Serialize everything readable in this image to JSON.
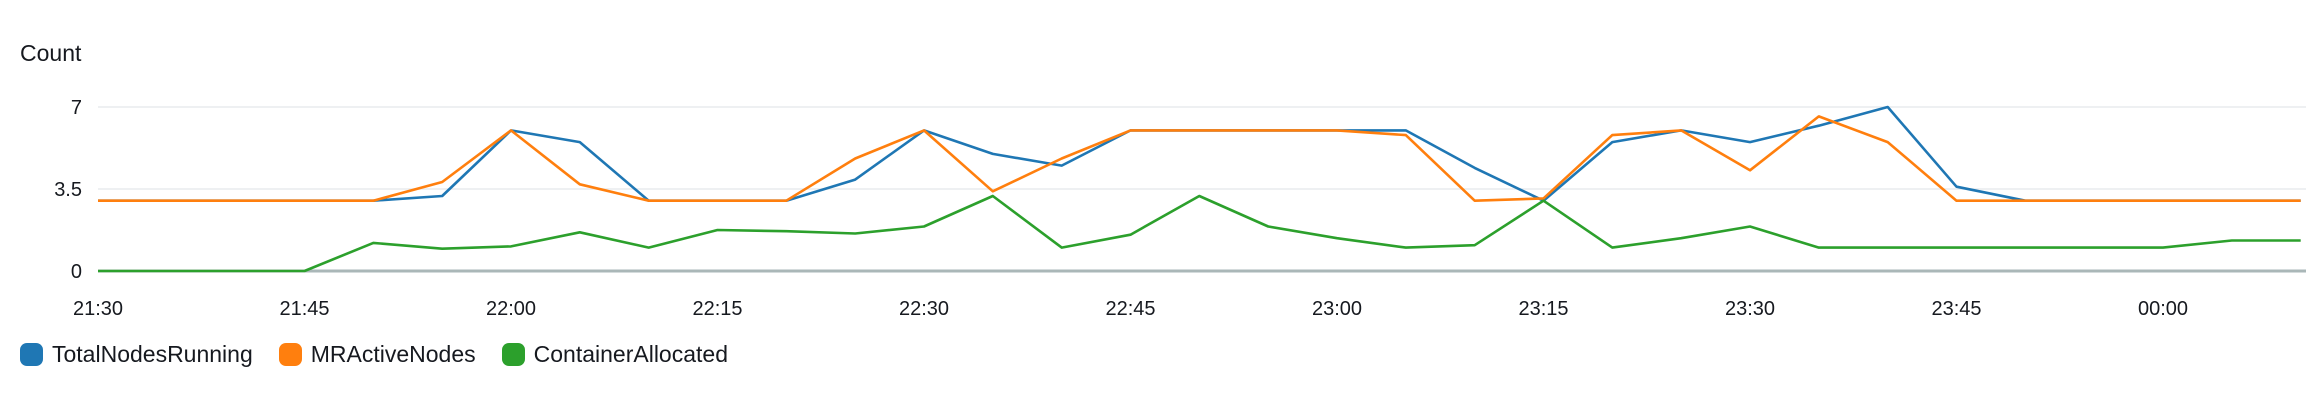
{
  "chart_data": {
    "type": "line",
    "ylabel": "Count",
    "ylim": [
      0,
      7
    ],
    "yticks": [
      "0",
      "3.5",
      "7"
    ],
    "ytick_values": [
      0,
      3.5,
      7
    ],
    "xticks": [
      "21:30",
      "21:45",
      "22:00",
      "22:15",
      "22:30",
      "22:45",
      "23:00",
      "23:15",
      "23:30",
      "23:45",
      "00:00"
    ],
    "x": [
      "21:30",
      "21:35",
      "21:40",
      "21:45",
      "21:50",
      "21:55",
      "22:00",
      "22:05",
      "22:10",
      "22:15",
      "22:20",
      "22:25",
      "22:30",
      "22:35",
      "22:40",
      "22:45",
      "22:50",
      "22:55",
      "23:00",
      "23:05",
      "23:10",
      "23:15",
      "23:20",
      "23:25",
      "23:30",
      "23:35",
      "23:40",
      "23:45",
      "23:50",
      "23:55",
      "00:00",
      "00:05",
      "00:10"
    ],
    "grid": true,
    "legend_position": "bottom-left",
    "series": [
      {
        "name": "TotalNodesRunning",
        "color": "#1f77b4",
        "values": [
          3,
          3,
          3,
          3,
          3,
          3.2,
          6,
          5.5,
          3,
          3,
          3,
          3.9,
          6,
          5,
          4.5,
          6,
          6,
          6,
          6,
          6,
          4.4,
          3,
          5.5,
          6,
          5.5,
          6.2,
          7,
          3.6,
          3,
          3,
          3,
          3,
          3
        ]
      },
      {
        "name": "MRActiveNodes",
        "color": "#ff7f0e",
        "values": [
          3,
          3,
          3,
          3,
          3,
          3.8,
          6,
          3.7,
          3,
          3,
          3,
          4.8,
          6,
          3.4,
          4.8,
          6,
          6,
          6,
          6,
          5.8,
          3,
          3.1,
          5.8,
          6,
          4.3,
          6.6,
          5.5,
          3,
          3,
          3,
          3,
          3,
          3
        ]
      },
      {
        "name": "ContainerAllocated",
        "color": "#2ca02c",
        "values": [
          0,
          0,
          0,
          0,
          1.2,
          0.95,
          1.05,
          1.65,
          1,
          1.75,
          1.7,
          1.6,
          1.9,
          3.2,
          1,
          1.55,
          3.2,
          1.9,
          1.4,
          1,
          1.1,
          3,
          1,
          1.4,
          1.9,
          1,
          1,
          1,
          1,
          1,
          1,
          1.3,
          1.3
        ]
      }
    ]
  }
}
